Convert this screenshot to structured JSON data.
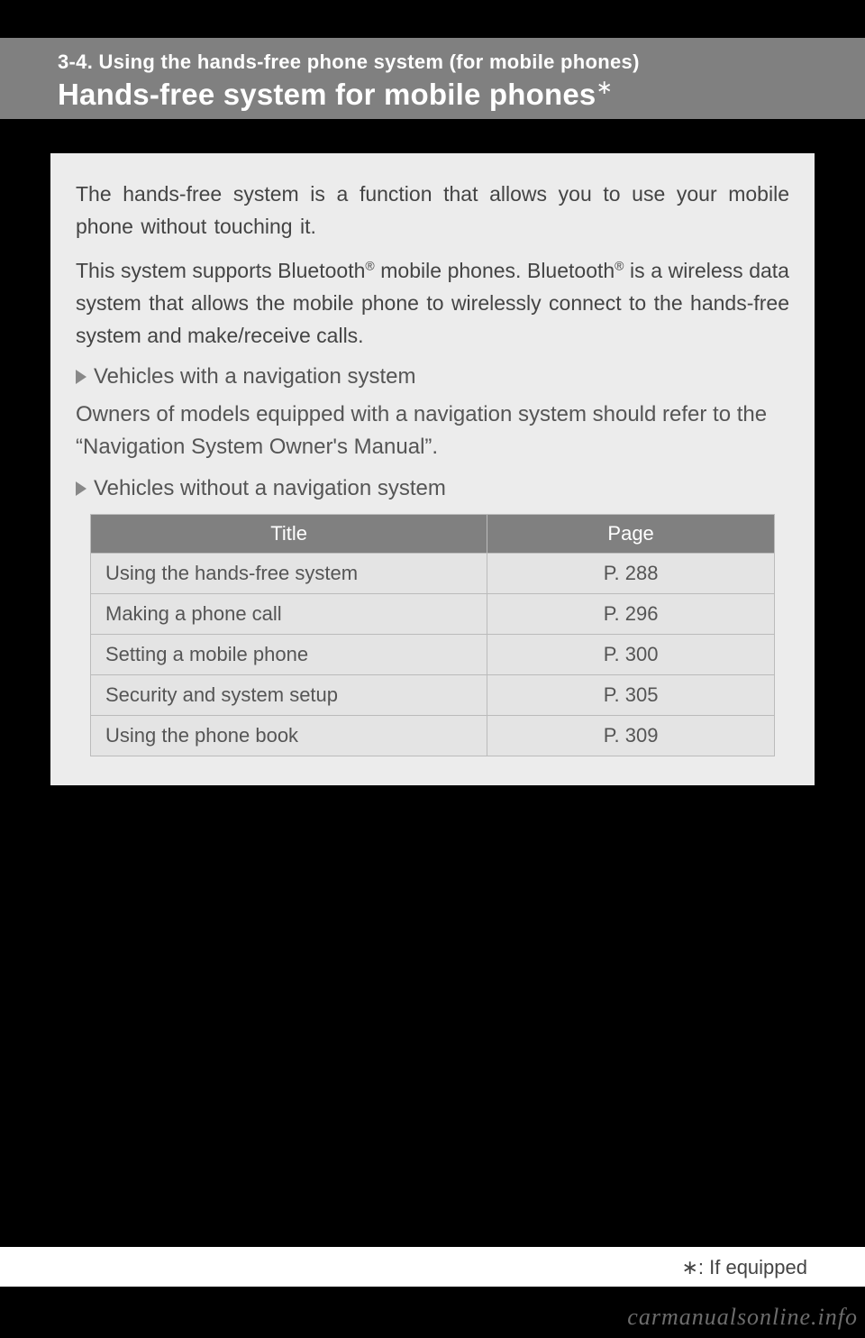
{
  "header": {
    "section_number": "3-4. Using the hands-free phone system (for mobile phones)",
    "title": "Hands-free system for mobile phones",
    "title_marker": "∗"
  },
  "intro": {
    "p1": "The hands-free system is a function that allows you to use your mobile phone without touching it.",
    "p2_pre": "This system supports Bluetooth",
    "p2_mid": " mobile phones. Bluetooth",
    "p2_post": " is a wireless data system that allows the mobile phone to wirelessly connect to the hands-free system and make/receive calls.",
    "reg": "®"
  },
  "sections": {
    "with_nav_label": "Vehicles with a navigation system",
    "with_nav_body": "Owners of models equipped with a navigation system should refer to the “Navigation System Owner's Manual”.",
    "without_nav_label": "Vehicles without a navigation system"
  },
  "table": {
    "columns": [
      "Title",
      "Page"
    ],
    "rows": [
      [
        "Using the hands-free system",
        "P. 288"
      ],
      [
        "Making a phone call",
        "P. 296"
      ],
      [
        "Setting a mobile phone",
        "P. 300"
      ],
      [
        "Security and system setup",
        "P. 305"
      ],
      [
        "Using the phone book",
        "P. 309"
      ]
    ],
    "header_bg": "#808080",
    "header_fg": "#ffffff",
    "cell_bg": "#e4e4e4",
    "border_color": "#bbbbbb"
  },
  "footer": {
    "note": "∗: If equipped"
  },
  "watermark": "carmanualsonline.info",
  "colors": {
    "page_bg": "#000000",
    "box_bg": "#ececec",
    "band_bg": "#808080",
    "text": "#4a4a4a"
  }
}
